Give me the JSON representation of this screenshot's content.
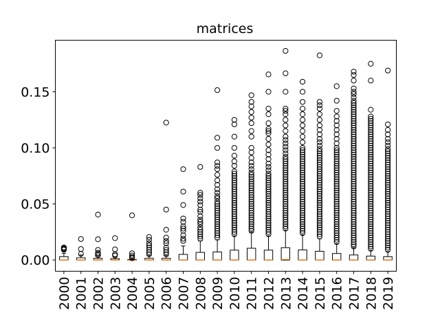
{
  "chart_data": {
    "type": "boxplot",
    "title": "matrices",
    "xlabel": "",
    "ylabel": "",
    "ylim": [
      -0.01,
      0.196
    ],
    "yticks": [
      "0.00",
      "0.05",
      "0.10",
      "0.15"
    ],
    "ytick_values": [
      0.0,
      0.05,
      0.1,
      0.15
    ],
    "grid": false,
    "legend": "none",
    "colors": {
      "box": "#000000",
      "median": "#ff7f0e",
      "flier": "#000000"
    },
    "categories": [
      "2000",
      "2001",
      "2002",
      "2003",
      "2004",
      "2005",
      "2006",
      "2007",
      "2008",
      "2009",
      "2010",
      "2011",
      "2012",
      "2013",
      "2014",
      "2015",
      "2016",
      "2017",
      "2018",
      "2019"
    ],
    "boxes": [
      {
        "year": "2000",
        "q1": 0.0,
        "median": 0.0,
        "q3": 0.003,
        "whisker_low": 0.0,
        "whisker_high": 0.006,
        "fliers": [
          0.0092,
          0.0098,
          0.0104,
          0.0112
        ]
      },
      {
        "year": "2001",
        "q1": 0.0,
        "median": 0.0,
        "q3": 0.002,
        "whisker_low": 0.0,
        "whisker_high": 0.0045,
        "fliers": [
          0.0055,
          0.0098,
          0.0187
        ]
      },
      {
        "year": "2002",
        "q1": 0.0,
        "median": 0.0,
        "q3": 0.0015,
        "whisker_low": 0.0,
        "whisker_high": 0.0035,
        "fliers": [
          0.0042,
          0.0055,
          0.0065,
          0.009,
          0.0185,
          0.0405
        ]
      },
      {
        "year": "2003",
        "q1": 0.0,
        "median": 0.0,
        "q3": 0.0012,
        "whisker_low": 0.0,
        "whisker_high": 0.003,
        "fliers": [
          0.004,
          0.005,
          0.0095,
          0.0195
        ]
      },
      {
        "year": "2004",
        "q1": 0.0,
        "median": 0.0,
        "q3": 0.0005,
        "whisker_low": 0.0,
        "whisker_high": 0.0012,
        "fliers": [
          0.0015,
          0.0025,
          0.004,
          0.006,
          0.0398
        ]
      },
      {
        "year": "2005",
        "q1": 0.0,
        "median": 0.0,
        "q3": 0.0015,
        "whisker_low": 0.0,
        "whisker_high": 0.004,
        "fliers": [
          0.005,
          0.007,
          0.009,
          0.011,
          0.013,
          0.015,
          0.018,
          0.0205
        ]
      },
      {
        "year": "2006",
        "q1": 0.0,
        "median": 0.0,
        "q3": 0.0015,
        "whisker_low": 0.0,
        "whisker_high": 0.004,
        "fliers": [
          0.005,
          0.007,
          0.009,
          0.011,
          0.015,
          0.017,
          0.02,
          0.027,
          0.045,
          0.1225
        ]
      },
      {
        "year": "2007",
        "q1": 0.0,
        "median": 0.0,
        "q3": 0.005,
        "whisker_low": 0.0,
        "whisker_high": 0.0125,
        "fliers": [
          0.017,
          0.019,
          0.022,
          0.026,
          0.028,
          0.03,
          0.034,
          0.037,
          0.049,
          0.061,
          0.081
        ]
      },
      {
        "year": "2008",
        "q1": 0.0,
        "median": 0.0,
        "q3": 0.0068,
        "whisker_low": 0.0,
        "whisker_high": 0.017,
        "fliers": [
          0.019,
          0.021,
          0.023,
          0.025,
          0.027,
          0.029,
          0.032,
          0.034,
          0.036,
          0.039,
          0.043,
          0.045,
          0.049,
          0.052,
          0.055,
          0.058,
          0.06,
          0.083
        ]
      },
      {
        "year": "2009",
        "q1": 0.0,
        "median": 0.0,
        "q3": 0.0072,
        "whisker_low": 0.0,
        "whisker_high": 0.018,
        "fliers": [
          0.02,
          0.022,
          0.024,
          0.026,
          0.028,
          0.03,
          0.032,
          0.034,
          0.036,
          0.038,
          0.04,
          0.042,
          0.044,
          0.046,
          0.048,
          0.05,
          0.052,
          0.055,
          0.057,
          0.06,
          0.063,
          0.067,
          0.071,
          0.076,
          0.081,
          0.084,
          0.087,
          0.1,
          0.109,
          0.1515
        ]
      },
      {
        "year": "2010",
        "q1": 0.0,
        "median": 0.0,
        "q3": 0.0088,
        "whisker_low": 0.0,
        "whisker_high": 0.0215,
        "fliers": [
          0.023,
          0.025,
          0.027,
          0.029,
          0.031,
          0.033,
          0.035,
          0.037,
          0.039,
          0.041,
          0.043,
          0.045,
          0.047,
          0.049,
          0.051,
          0.053,
          0.055,
          0.057,
          0.059,
          0.061,
          0.063,
          0.065,
          0.067,
          0.069,
          0.071,
          0.073,
          0.075,
          0.077,
          0.079,
          0.084,
          0.088,
          0.093,
          0.1,
          0.11,
          0.121,
          0.125
        ]
      },
      {
        "year": "2011",
        "q1": 0.0,
        "median": 0.0,
        "q3": 0.0105,
        "whisker_low": 0.0,
        "whisker_high": 0.025,
        "fliers": [
          0.026,
          0.028,
          0.03,
          0.032,
          0.034,
          0.036,
          0.038,
          0.04,
          0.042,
          0.044,
          0.046,
          0.048,
          0.05,
          0.052,
          0.054,
          0.056,
          0.058,
          0.06,
          0.062,
          0.064,
          0.066,
          0.068,
          0.07,
          0.072,
          0.074,
          0.076,
          0.078,
          0.081,
          0.084,
          0.087,
          0.091,
          0.096,
          0.1,
          0.11,
          0.115,
          0.122,
          0.127,
          0.132,
          0.137,
          0.141,
          0.147
        ]
      },
      {
        "year": "2012",
        "q1": 0.0,
        "median": 0.0,
        "q3": 0.0088,
        "whisker_low": 0.0,
        "whisker_high": 0.0215,
        "fliers": [
          0.023,
          0.025,
          0.027,
          0.029,
          0.031,
          0.033,
          0.035,
          0.037,
          0.039,
          0.041,
          0.043,
          0.045,
          0.047,
          0.049,
          0.051,
          0.053,
          0.055,
          0.057,
          0.059,
          0.061,
          0.063,
          0.065,
          0.067,
          0.069,
          0.071,
          0.073,
          0.075,
          0.077,
          0.08,
          0.083,
          0.086,
          0.09,
          0.094,
          0.098,
          0.103,
          0.108,
          0.113,
          0.115,
          0.117,
          0.122,
          0.13,
          0.135,
          0.15,
          0.1655
        ]
      },
      {
        "year": "2013",
        "q1": 0.0,
        "median": 0.0005,
        "q3": 0.011,
        "whisker_low": 0.0,
        "whisker_high": 0.0265,
        "fliers": [
          0.028,
          0.03,
          0.032,
          0.034,
          0.036,
          0.038,
          0.04,
          0.042,
          0.044,
          0.046,
          0.048,
          0.05,
          0.052,
          0.054,
          0.056,
          0.058,
          0.06,
          0.062,
          0.064,
          0.066,
          0.068,
          0.07,
          0.072,
          0.074,
          0.076,
          0.078,
          0.08,
          0.082,
          0.084,
          0.086,
          0.088,
          0.09,
          0.092,
          0.095,
          0.098,
          0.101,
          0.104,
          0.107,
          0.11,
          0.115,
          0.12,
          0.125,
          0.13,
          0.133,
          0.135,
          0.15,
          0.1665,
          0.1865
        ]
      },
      {
        "year": "2014",
        "q1": 0.0,
        "median": 0.0,
        "q3": 0.009,
        "whisker_low": 0.0,
        "whisker_high": 0.0225,
        "fliers": [
          0.024,
          0.026,
          0.028,
          0.03,
          0.032,
          0.034,
          0.036,
          0.038,
          0.04,
          0.042,
          0.044,
          0.046,
          0.048,
          0.05,
          0.052,
          0.054,
          0.056,
          0.058,
          0.06,
          0.062,
          0.064,
          0.066,
          0.068,
          0.07,
          0.072,
          0.074,
          0.076,
          0.078,
          0.08,
          0.082,
          0.084,
          0.086,
          0.088,
          0.09,
          0.092,
          0.094,
          0.096,
          0.098,
          0.1,
          0.105,
          0.11,
          0.115,
          0.12,
          0.125,
          0.13,
          0.135,
          0.141,
          0.15,
          0.159
        ]
      },
      {
        "year": "2015",
        "q1": 0.0,
        "median": 0.0,
        "q3": 0.0078,
        "whisker_low": 0.0,
        "whisker_high": 0.019,
        "fliers": [
          0.021,
          0.023,
          0.025,
          0.027,
          0.029,
          0.031,
          0.033,
          0.035,
          0.037,
          0.039,
          0.041,
          0.043,
          0.045,
          0.047,
          0.049,
          0.051,
          0.053,
          0.055,
          0.057,
          0.059,
          0.061,
          0.063,
          0.065,
          0.067,
          0.069,
          0.071,
          0.073,
          0.075,
          0.077,
          0.079,
          0.081,
          0.083,
          0.085,
          0.087,
          0.089,
          0.091,
          0.093,
          0.095,
          0.097,
          0.099,
          0.102,
          0.105,
          0.108,
          0.112,
          0.116,
          0.12,
          0.125,
          0.13,
          0.135,
          0.138,
          0.141,
          0.1825
        ]
      },
      {
        "year": "2016",
        "q1": 0.0,
        "median": 0.0,
        "q3": 0.0058,
        "whisker_low": 0.0,
        "whisker_high": 0.0145,
        "fliers": [
          0.016,
          0.018,
          0.02,
          0.022,
          0.024,
          0.026,
          0.028,
          0.03,
          0.032,
          0.034,
          0.036,
          0.038,
          0.04,
          0.042,
          0.044,
          0.046,
          0.048,
          0.05,
          0.052,
          0.054,
          0.056,
          0.058,
          0.06,
          0.062,
          0.064,
          0.066,
          0.068,
          0.07,
          0.072,
          0.074,
          0.076,
          0.078,
          0.08,
          0.082,
          0.084,
          0.086,
          0.088,
          0.09,
          0.092,
          0.094,
          0.096,
          0.098,
          0.1,
          0.104,
          0.108,
          0.112,
          0.116,
          0.12,
          0.124,
          0.128,
          0.133,
          0.142,
          0.155
        ]
      },
      {
        "year": "2017",
        "q1": 0.0,
        "median": 0.0,
        "q3": 0.0045,
        "whisker_low": 0.0,
        "whisker_high": 0.011,
        "fliers": [
          0.012,
          0.014,
          0.016,
          0.018,
          0.02,
          0.022,
          0.024,
          0.026,
          0.028,
          0.03,
          0.032,
          0.034,
          0.036,
          0.038,
          0.04,
          0.042,
          0.044,
          0.046,
          0.048,
          0.05,
          0.052,
          0.054,
          0.056,
          0.058,
          0.06,
          0.062,
          0.064,
          0.066,
          0.068,
          0.07,
          0.072,
          0.074,
          0.076,
          0.078,
          0.08,
          0.082,
          0.084,
          0.086,
          0.088,
          0.09,
          0.092,
          0.094,
          0.096,
          0.098,
          0.1,
          0.102,
          0.104,
          0.106,
          0.108,
          0.11,
          0.112,
          0.114,
          0.116,
          0.118,
          0.12,
          0.122,
          0.124,
          0.126,
          0.128,
          0.13,
          0.132,
          0.134,
          0.136,
          0.138,
          0.14,
          0.142,
          0.145,
          0.148,
          0.15,
          0.153,
          0.16,
          0.165,
          0.168
        ]
      },
      {
        "year": "2018",
        "q1": 0.0,
        "median": 0.0,
        "q3": 0.0035,
        "whisker_low": 0.0,
        "whisker_high": 0.0085,
        "fliers": [
          0.01,
          0.012,
          0.014,
          0.016,
          0.018,
          0.02,
          0.022,
          0.024,
          0.026,
          0.028,
          0.03,
          0.032,
          0.034,
          0.036,
          0.038,
          0.04,
          0.042,
          0.044,
          0.046,
          0.048,
          0.05,
          0.052,
          0.054,
          0.056,
          0.058,
          0.06,
          0.062,
          0.064,
          0.066,
          0.068,
          0.07,
          0.072,
          0.074,
          0.076,
          0.078,
          0.08,
          0.082,
          0.084,
          0.086,
          0.088,
          0.09,
          0.092,
          0.094,
          0.096,
          0.098,
          0.1,
          0.102,
          0.104,
          0.106,
          0.108,
          0.11,
          0.112,
          0.114,
          0.116,
          0.118,
          0.12,
          0.122,
          0.124,
          0.126,
          0.128,
          0.134,
          0.16,
          0.175
        ]
      },
      {
        "year": "2019",
        "q1": 0.0,
        "median": 0.0,
        "q3": 0.003,
        "whisker_low": 0.0,
        "whisker_high": 0.0075,
        "fliers": [
          0.009,
          0.011,
          0.013,
          0.015,
          0.017,
          0.019,
          0.021,
          0.023,
          0.025,
          0.027,
          0.029,
          0.031,
          0.033,
          0.035,
          0.037,
          0.039,
          0.041,
          0.043,
          0.045,
          0.047,
          0.049,
          0.051,
          0.053,
          0.055,
          0.057,
          0.059,
          0.061,
          0.063,
          0.065,
          0.067,
          0.069,
          0.071,
          0.073,
          0.075,
          0.077,
          0.079,
          0.081,
          0.083,
          0.085,
          0.087,
          0.089,
          0.091,
          0.093,
          0.095,
          0.097,
          0.099,
          0.102,
          0.105,
          0.108,
          0.112,
          0.116,
          0.121,
          0.169
        ]
      }
    ]
  }
}
